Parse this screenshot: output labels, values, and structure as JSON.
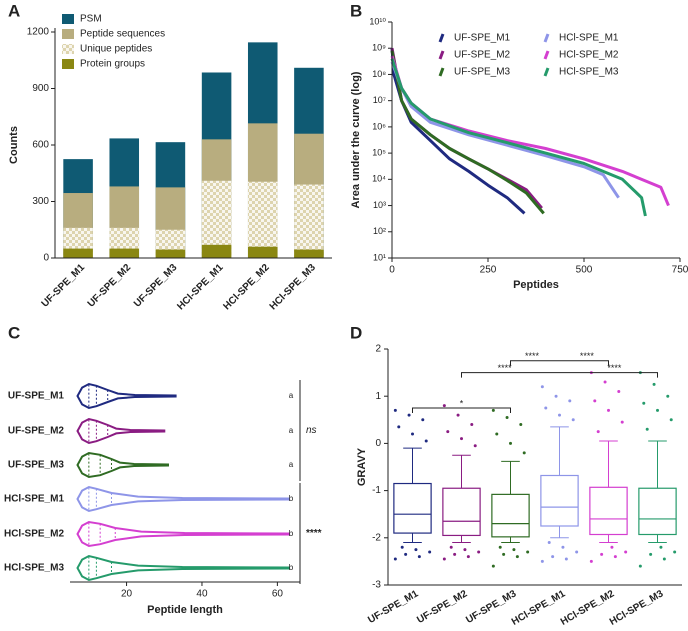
{
  "chart_data": [
    {
      "panel": "A",
      "type": "bar",
      "overlay": true,
      "ylabel": "Counts",
      "categories": [
        "UF-SPE_M1",
        "UF-SPE_M2",
        "UF-SPE_M3",
        "HCl-SPE_M1",
        "HCl-SPE_M2",
        "HCl-SPE_M3"
      ],
      "series": [
        {
          "name": "PSM",
          "color": "#0f5a73",
          "values": [
            525,
            635,
            615,
            985,
            1145,
            1010
          ]
        },
        {
          "name": "Peptide sequences",
          "color": "#b8ad7f",
          "values": [
            345,
            380,
            375,
            630,
            715,
            660
          ]
        },
        {
          "name": "Unique peptides",
          "color": "#ddd4ae",
          "hatch": true,
          "values": [
            160,
            160,
            150,
            410,
            405,
            390
          ]
        },
        {
          "name": "Protein groups",
          "color": "#8a8712",
          "values": [
            50,
            50,
            45,
            70,
            60,
            45
          ]
        }
      ],
      "ylim": [
        0,
        1200
      ],
      "yticks": [
        0,
        300,
        600,
        900,
        1200
      ]
    },
    {
      "panel": "B",
      "type": "line",
      "xlabel": "Peptides",
      "ylabel": "Area under the curve (log)",
      "yscale": "log",
      "xlim": [
        0,
        750
      ],
      "xticks": [
        0,
        250,
        500,
        750
      ],
      "ylim": [
        10,
        10000000000
      ],
      "yticks": [
        {
          "value": 10,
          "label": "10¹"
        },
        {
          "value": 100,
          "label": "10²"
        },
        {
          "value": 1000,
          "label": "10³"
        },
        {
          "value": 10000,
          "label": "10⁴"
        },
        {
          "value": 100000,
          "label": "10⁵"
        },
        {
          "value": 1000000,
          "label": "10⁶"
        },
        {
          "value": 10000000,
          "label": "10⁷"
        },
        {
          "value": 100000000,
          "label": "10⁸"
        },
        {
          "value": 1000000000,
          "label": "10⁹"
        },
        {
          "value": 10000000000,
          "label": "10¹⁰"
        }
      ],
      "series": [
        {
          "name": "UF-SPE_M1",
          "color": "#1f2a80",
          "x": [
            0,
            5,
            25,
            50,
            100,
            150,
            200,
            250,
            300,
            345
          ],
          "values": [
            1000000000,
            100000000,
            10000000,
            1500000,
            300000,
            60000,
            20000,
            6000,
            2000,
            500
          ]
        },
        {
          "name": "UF-SPE_M2",
          "color": "#8a1c82",
          "x": [
            0,
            25,
            50,
            100,
            150,
            200,
            250,
            300,
            350,
            390
          ],
          "values": [
            1000000000,
            10000000,
            2000000,
            500000,
            150000,
            60000,
            25000,
            10000,
            4000,
            800
          ]
        },
        {
          "name": "UF-SPE_M3",
          "color": "#2f6b23",
          "x": [
            0,
            25,
            50,
            100,
            150,
            200,
            250,
            300,
            350,
            395
          ],
          "values": [
            800000000,
            10000000,
            2000000,
            500000,
            150000,
            60000,
            25000,
            9000,
            3000,
            500
          ]
        },
        {
          "name": "HCl-SPE_M1",
          "color": "#8e95e8",
          "x": [
            0,
            25,
            50,
            100,
            200,
            300,
            400,
            500,
            550,
            590
          ],
          "values": [
            300000000,
            30000000,
            6000000,
            1500000,
            500000,
            200000,
            80000,
            30000,
            15000,
            2000
          ]
        },
        {
          "name": "HCl-SPE_M2",
          "color": "#d43fd0",
          "x": [
            0,
            25,
            50,
            100,
            200,
            300,
            400,
            500,
            600,
            700,
            720
          ],
          "values": [
            500000000,
            30000000,
            8000000,
            2000000,
            700000,
            300000,
            150000,
            60000,
            20000,
            5000,
            1000
          ]
        },
        {
          "name": "HCl-SPE_M3",
          "color": "#259b6b",
          "x": [
            0,
            25,
            50,
            100,
            200,
            300,
            400,
            500,
            600,
            650,
            660
          ],
          "values": [
            400000000,
            30000000,
            8000000,
            2000000,
            600000,
            250000,
            100000,
            40000,
            10000,
            2000,
            400
          ]
        }
      ]
    },
    {
      "panel": "C",
      "type": "violin",
      "xlabel": "Peptide length",
      "categories": [
        "UF-SPE_M1",
        "UF-SPE_M2",
        "UF-SPE_M3",
        "HCl-SPE_M1",
        "HCl-SPE_M2",
        "HCl-SPE_M3"
      ],
      "colors": [
        "#1f2a80",
        "#8a1c82",
        "#2f6b23",
        "#8e95e8",
        "#d43fd0",
        "#259b6b"
      ],
      "min": [
        7,
        7,
        7,
        7,
        7,
        7
      ],
      "q1": [
        10,
        10,
        10,
        10,
        10,
        10
      ],
      "median": [
        12,
        12,
        13,
        12,
        13,
        12
      ],
      "q3": [
        15,
        15,
        16,
        16,
        17,
        16
      ],
      "max": [
        33,
        30,
        31,
        63,
        63,
        63
      ],
      "letters": [
        "a",
        "a",
        "a",
        "b",
        "b",
        "b"
      ],
      "group_labels": [
        "ns",
        "****"
      ],
      "xlim": [
        5,
        66
      ],
      "xticks": [
        20,
        40,
        60
      ]
    },
    {
      "panel": "D",
      "type": "box",
      "ylabel": "GRAVY",
      "categories": [
        "UF-SPE_M1",
        "UF-SPE_M2",
        "UF-SPE_M3",
        "HCl-SPE_M1",
        "HCl-SPE_M2",
        "HCl-SPE_M3"
      ],
      "colors": [
        "#1f2a80",
        "#8a1c82",
        "#2f6b23",
        "#8e95e8",
        "#d43fd0",
        "#259b6b"
      ],
      "whisker_low": [
        -2.1,
        -2.1,
        -2.1,
        -2.0,
        -2.1,
        -2.1
      ],
      "q1": [
        -1.9,
        -1.95,
        -1.98,
        -1.75,
        -1.93,
        -1.93
      ],
      "median": [
        -1.5,
        -1.65,
        -1.7,
        -1.35,
        -1.6,
        -1.6
      ],
      "q3": [
        -0.85,
        -0.95,
        -1.08,
        -0.68,
        -0.93,
        -0.95
      ],
      "whisker_high": [
        -0.1,
        -0.25,
        -0.38,
        0.35,
        0.05,
        0.05
      ],
      "points": [
        [
          0.7,
          0.6,
          0.5,
          0.35,
          0.2,
          0.05,
          -2.2,
          -2.25,
          -2.3,
          -2.35,
          -2.4,
          -2.45
        ],
        [
          0.8,
          0.6,
          0.4,
          0.25,
          0.1,
          -0.05,
          -2.2,
          -2.25,
          -2.3,
          -2.35,
          -2.4,
          -2.45
        ],
        [
          0.7,
          0.55,
          0.4,
          0.2,
          0.0,
          -0.2,
          -2.2,
          -2.25,
          -2.3,
          -2.35,
          -2.4,
          -2.6
        ],
        [
          1.2,
          1.0,
          0.9,
          0.75,
          0.6,
          0.5,
          -2.1,
          -2.2,
          -2.3,
          -2.4,
          -2.45,
          -2.5
        ],
        [
          1.5,
          1.3,
          1.1,
          0.9,
          0.7,
          0.45,
          0.25,
          -2.2,
          -2.3,
          -2.35,
          -2.4,
          -2.5
        ],
        [
          1.5,
          1.25,
          1.0,
          0.85,
          0.7,
          0.5,
          0.3,
          -2.2,
          -2.3,
          -2.35,
          -2.45,
          -2.6
        ]
      ],
      "brackets": [
        {
          "from": "UF-SPE_M1",
          "to": "UF-SPE_M3",
          "y": 0.75,
          "labels": [
            "*"
          ]
        },
        {
          "from": "UF-SPE_M2",
          "to": "HCl-SPE_M3",
          "y": 1.5,
          "labels": [
            "****",
            "****"
          ]
        },
        {
          "from": "UF-SPE_M3",
          "to": "HCl-SPE_M2",
          "y": 1.75,
          "labels": [
            "****",
            "****"
          ]
        }
      ],
      "ylim": [
        -3,
        2
      ],
      "yticks": [
        -3,
        -2,
        -1,
        0,
        1,
        2
      ]
    }
  ]
}
